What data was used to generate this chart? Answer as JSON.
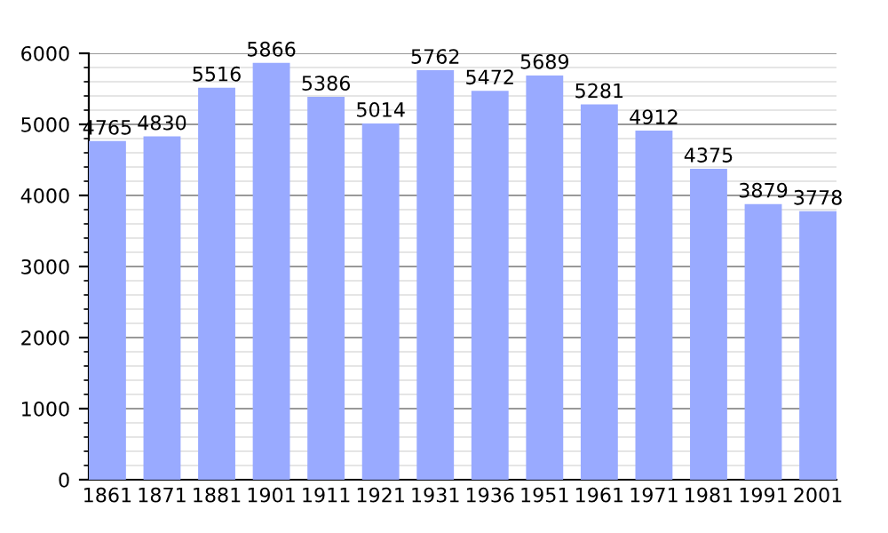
{
  "chart_data": {
    "type": "bar",
    "categories": [
      "1861",
      "1871",
      "1881",
      "1901",
      "1911",
      "1921",
      "1931",
      "1936",
      "1951",
      "1961",
      "1971",
      "1981",
      "1991",
      "2001"
    ],
    "values": [
      4765,
      4830,
      5516,
      5866,
      5386,
      5014,
      5762,
      5472,
      5689,
      5281,
      4912,
      4375,
      3879,
      3778
    ],
    "color": "#99aaff",
    "ylim": [
      0,
      6000
    ],
    "yticks": [
      0,
      1000,
      2000,
      3000,
      4000,
      5000,
      6000
    ],
    "grid": "y",
    "data_labels": true
  }
}
